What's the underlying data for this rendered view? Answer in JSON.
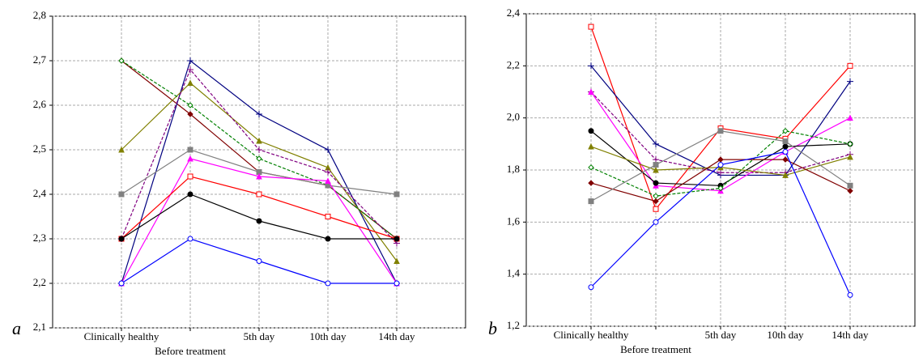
{
  "chart_data": [
    {
      "type": "line",
      "panel_label": "a",
      "categories": [
        "Clinically healthy",
        "Before treatment",
        "5th day",
        "10th day",
        "14th day"
      ],
      "ylim": [
        2.1,
        2.8
      ],
      "yticks": [
        {
          "value": 2.1,
          "label": "2,1"
        },
        {
          "value": 2.2,
          "label": "2,2"
        },
        {
          "value": 2.3,
          "label": "2,3"
        },
        {
          "value": 2.4,
          "label": "2,4"
        },
        {
          "value": 2.5,
          "label": "2,5"
        },
        {
          "value": 2.6,
          "label": "2,6"
        },
        {
          "value": 2.7,
          "label": "2,7"
        },
        {
          "value": 2.8,
          "label": "2,8"
        }
      ],
      "grid": true,
      "series": [
        {
          "color": "#800000",
          "marker": "diamond",
          "dashed": false,
          "values": [
            2.7,
            2.58,
            2.45,
            2.42,
            2.3
          ]
        },
        {
          "color": "#000080",
          "marker": "plus",
          "dashed": false,
          "values": [
            2.2,
            2.7,
            2.58,
            2.5,
            2.2
          ]
        },
        {
          "color": "#808000",
          "marker": "triangle",
          "dashed": false,
          "values": [
            2.5,
            2.65,
            2.52,
            2.46,
            2.25
          ]
        },
        {
          "color": "#008000",
          "marker": "diamond-open",
          "dashed": true,
          "values": [
            2.7,
            2.6,
            2.48,
            2.42,
            2.3
          ]
        },
        {
          "color": "#800080",
          "marker": "plus",
          "dashed": true,
          "values": [
            2.3,
            2.68,
            2.5,
            2.45,
            2.29
          ]
        },
        {
          "color": "#808080",
          "marker": "square",
          "dashed": false,
          "values": [
            2.4,
            2.5,
            2.45,
            2.42,
            2.4
          ]
        },
        {
          "color": "#ff00ff",
          "marker": "triangle",
          "dashed": false,
          "values": [
            2.2,
            2.48,
            2.44,
            2.43,
            2.2
          ]
        },
        {
          "color": "#ff0000",
          "marker": "square-open",
          "dashed": false,
          "values": [
            2.3,
            2.44,
            2.4,
            2.35,
            2.3
          ]
        },
        {
          "color": "#000000",
          "marker": "circle",
          "dashed": false,
          "values": [
            2.3,
            2.4,
            2.34,
            2.3,
            2.3
          ]
        },
        {
          "color": "#0000ff",
          "marker": "circle-open",
          "dashed": false,
          "values": [
            2.2,
            2.3,
            2.25,
            2.2,
            2.2
          ]
        }
      ]
    },
    {
      "type": "line",
      "panel_label": "b",
      "categories": [
        "Clinically healthy",
        "Before treatment",
        "5th day",
        "10th day",
        "14th day"
      ],
      "ylim": [
        1.2,
        2.4
      ],
      "yticks": [
        {
          "value": 1.2,
          "label": "1,2"
        },
        {
          "value": 1.4,
          "label": "1,4"
        },
        {
          "value": 1.6,
          "label": "1,6"
        },
        {
          "value": 1.8,
          "label": "1,8"
        },
        {
          "value": 2.0,
          "label": "2,0"
        },
        {
          "value": 2.2,
          "label": "2,2"
        },
        {
          "value": 2.4,
          "label": "2,4"
        }
      ],
      "grid": true,
      "series": [
        {
          "color": "#ff0000",
          "marker": "square-open",
          "dashed": false,
          "values": [
            2.35,
            1.65,
            1.96,
            1.92,
            2.2
          ]
        },
        {
          "color": "#000080",
          "marker": "plus",
          "dashed": false,
          "values": [
            2.2,
            1.9,
            1.78,
            1.78,
            2.14
          ]
        },
        {
          "color": "#800080",
          "marker": "plus",
          "dashed": true,
          "values": [
            2.1,
            1.84,
            1.79,
            1.79,
            1.86
          ]
        },
        {
          "color": "#ff00ff",
          "marker": "triangle",
          "dashed": false,
          "values": [
            2.1,
            1.74,
            1.72,
            1.87,
            2.0
          ]
        },
        {
          "color": "#000000",
          "marker": "circle",
          "dashed": false,
          "values": [
            1.95,
            1.75,
            1.74,
            1.89,
            1.9
          ]
        },
        {
          "color": "#808000",
          "marker": "triangle",
          "dashed": false,
          "values": [
            1.89,
            1.8,
            1.81,
            1.78,
            1.85
          ]
        },
        {
          "color": "#008000",
          "marker": "diamond-open",
          "dashed": true,
          "values": [
            1.81,
            1.7,
            1.73,
            1.95,
            1.9
          ]
        },
        {
          "color": "#800000",
          "marker": "diamond",
          "dashed": false,
          "values": [
            1.75,
            1.68,
            1.84,
            1.84,
            1.72
          ]
        },
        {
          "color": "#808080",
          "marker": "square",
          "dashed": false,
          "values": [
            1.68,
            1.82,
            1.95,
            1.91,
            1.74
          ]
        },
        {
          "color": "#0000ff",
          "marker": "circle-open",
          "dashed": false,
          "values": [
            1.35,
            1.6,
            1.82,
            1.87,
            1.32
          ]
        }
      ]
    }
  ]
}
